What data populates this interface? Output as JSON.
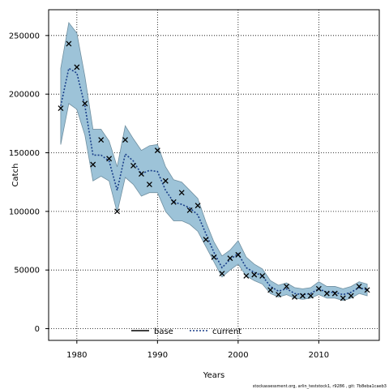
{
  "chart_data": {
    "type": "line",
    "xlabel": "Years",
    "ylabel": "Catch",
    "xlim": [
      1976.5,
      2017.5
    ],
    "ylim": [
      -10000,
      272000
    ],
    "xticks": [
      1980,
      1990,
      2000,
      2010
    ],
    "yticks": [
      0,
      50000,
      100000,
      150000,
      200000,
      250000
    ],
    "ytick_labels": [
      "0",
      "50000",
      "100000",
      "150000",
      "200000",
      "250000"
    ],
    "grid": true,
    "legend_position": "bottom-center",
    "legend": [
      {
        "label": "base",
        "style": "solid",
        "color": "#000000"
      },
      {
        "label": "current",
        "style": "dotted",
        "color": "#1a3f8a"
      }
    ],
    "colors": {
      "band_fill": "#9dc3d8",
      "band_edge": "#6f8fa0",
      "observed": "#000000",
      "grid": "#000000"
    },
    "x": [
      1978,
      1979,
      1980,
      1981,
      1982,
      1983,
      1984,
      1985,
      1986,
      1987,
      1988,
      1989,
      1990,
      1991,
      1992,
      1993,
      1994,
      1995,
      1996,
      1997,
      1998,
      1999,
      2000,
      2001,
      2002,
      2003,
      2004,
      2005,
      2006,
      2007,
      2008,
      2009,
      2010,
      2011,
      2012,
      2013,
      2014,
      2015,
      2016
    ],
    "series": [
      {
        "name": "current",
        "role": "fit",
        "values": [
          190000,
          222000,
          218000,
          190000,
          148000,
          148000,
          143000,
          118000,
          149000,
          143000,
          132000,
          135000,
          134000,
          118000,
          108000,
          106000,
          103000,
          97000,
          81000,
          65000,
          52000,
          59000,
          64000,
          52000,
          48000,
          45000,
          36000,
          32000,
          34000,
          30000,
          29000,
          30000,
          34000,
          31000,
          31000,
          29000,
          31000,
          35000,
          33000
        ]
      },
      {
        "name": "observed",
        "role": "points",
        "values": [
          188000,
          243000,
          223000,
          192000,
          140000,
          161000,
          145000,
          100000,
          161000,
          139000,
          132000,
          123000,
          152000,
          126000,
          108000,
          116000,
          101000,
          105000,
          76000,
          61000,
          47000,
          60000,
          63000,
          45000,
          46000,
          45000,
          33000,
          29000,
          36000,
          27000,
          28000,
          28000,
          34000,
          30000,
          30000,
          26000,
          28000,
          36000,
          33000
        ]
      },
      {
        "name": "upper",
        "role": "band",
        "values": [
          222000,
          261000,
          252000,
          215000,
          170000,
          170000,
          160000,
          138000,
          173000,
          162000,
          152000,
          156000,
          157000,
          138000,
          127000,
          125000,
          118000,
          111000,
          91000,
          74000,
          62000,
          67000,
          75000,
          61000,
          55000,
          51000,
          41000,
          37000,
          39000,
          35000,
          34000,
          35000,
          40000,
          36000,
          36000,
          34000,
          36000,
          40000,
          38000
        ]
      },
      {
        "name": "lower",
        "role": "band",
        "values": [
          157000,
          192000,
          187000,
          165000,
          126000,
          130000,
          126000,
          99000,
          129000,
          123000,
          113000,
          116000,
          116000,
          100000,
          92000,
          92000,
          89000,
          83000,
          70000,
          57000,
          44000,
          50000,
          55000,
          45000,
          41000,
          38000,
          30000,
          27000,
          29000,
          26000,
          25000,
          26000,
          29000,
          26000,
          26000,
          24000,
          26000,
          30000,
          28000
        ]
      }
    ]
  },
  "caption": "stockassessment.org, arlin_teststock1, r9286 , git: 7b8eba1caeb3"
}
